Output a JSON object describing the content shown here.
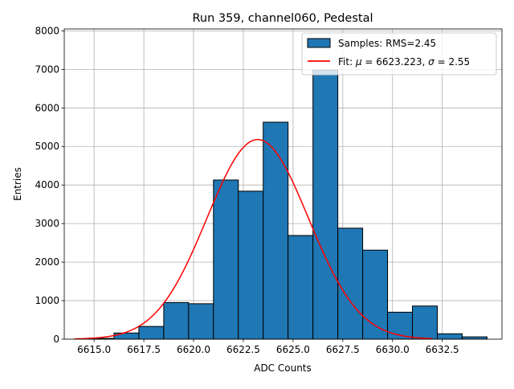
{
  "chart_data": {
    "type": "bar",
    "title": "Run 359, channel060, Pedestal",
    "xlabel": "ADC Counts",
    "ylabel": "Entries",
    "xlim": [
      6613.5,
      6635.5
    ],
    "ylim": [
      0,
      8050
    ],
    "x_ticks": [
      {
        "value": 6615.0,
        "label": "6615.0"
      },
      {
        "value": 6617.5,
        "label": "6617.5"
      },
      {
        "value": 6620.0,
        "label": "6620.0"
      },
      {
        "value": 6622.5,
        "label": "6622.5"
      },
      {
        "value": 6625.0,
        "label": "6625.0"
      },
      {
        "value": 6627.5,
        "label": "6627.5"
      },
      {
        "value": 6630.0,
        "label": "6630.0"
      },
      {
        "value": 6632.5,
        "label": "6632.5"
      }
    ],
    "y_ticks": [
      {
        "value": 0,
        "label": "0"
      },
      {
        "value": 1000,
        "label": "1000"
      },
      {
        "value": 2000,
        "label": "2000"
      },
      {
        "value": 3000,
        "label": "3000"
      },
      {
        "value": 4000,
        "label": "4000"
      },
      {
        "value": 5000,
        "label": "5000"
      },
      {
        "value": 6000,
        "label": "6000"
      },
      {
        "value": 7000,
        "label": "7000"
      },
      {
        "value": 8000,
        "label": "8000"
      }
    ],
    "grid": true,
    "legend_position": "top-right",
    "histogram": {
      "name": "Samples: RMS=2.45",
      "color": "#1f77b4",
      "edge_color": "#000000",
      "bin_width": 1.25,
      "bins": [
        {
          "x0": 6614.75,
          "count": 20
        },
        {
          "x0": 6616.0,
          "count": 160
        },
        {
          "x0": 6617.25,
          "count": 330
        },
        {
          "x0": 6618.5,
          "count": 950
        },
        {
          "x0": 6619.75,
          "count": 920
        },
        {
          "x0": 6621.0,
          "count": 4130
        },
        {
          "x0": 6622.25,
          "count": 3840
        },
        {
          "x0": 6623.5,
          "count": 5630
        },
        {
          "x0": 6624.75,
          "count": 2690
        },
        {
          "x0": 6626.0,
          "count": 6980
        },
        {
          "x0": 6627.25,
          "count": 2880
        },
        {
          "x0": 6628.5,
          "count": 2310
        },
        {
          "x0": 6629.75,
          "count": 700
        },
        {
          "x0": 6631.0,
          "count": 860
        },
        {
          "x0": 6632.25,
          "count": 140
        },
        {
          "x0": 6633.5,
          "count": 60
        }
      ]
    },
    "fit": {
      "name_prefix": "Fit: ",
      "name_mu": "μ",
      "name_mid": " = 6623.223, ",
      "name_sigma": "σ",
      "name_suffix": " = 2.55",
      "color": "#ff0000",
      "mu": 6623.223,
      "sigma": 2.55,
      "amplitude": 5180,
      "x_range": [
        6614.0,
        6632.0
      ]
    }
  }
}
